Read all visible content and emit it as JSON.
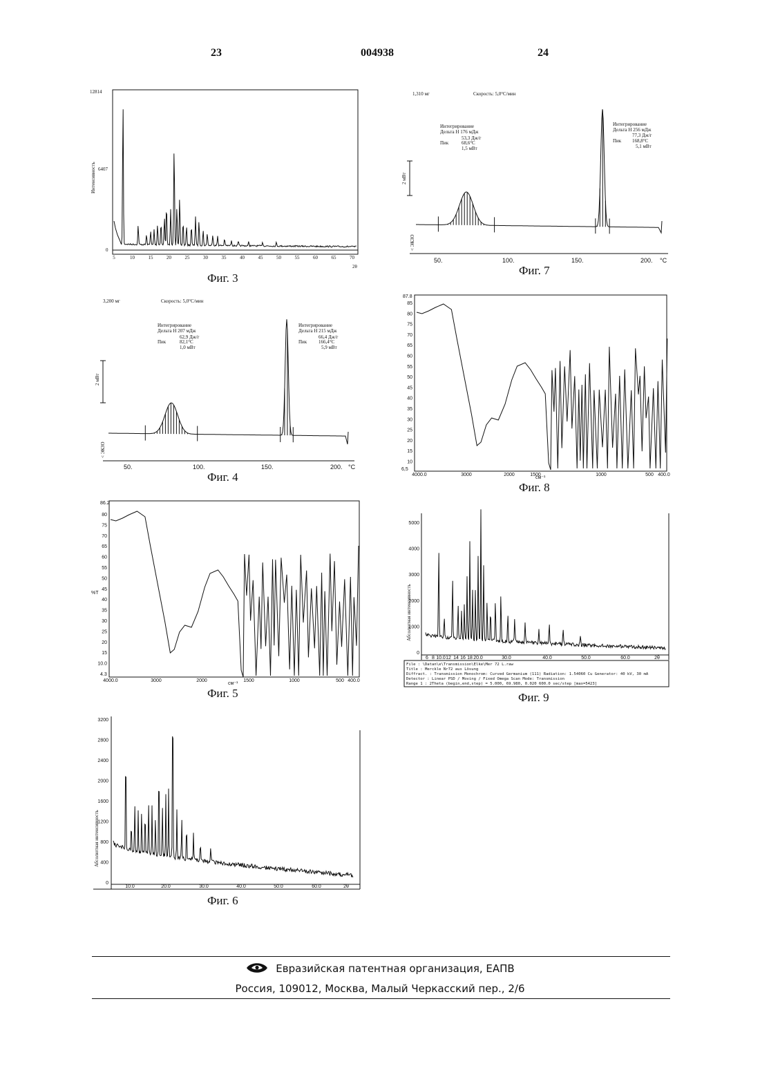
{
  "header": {
    "page_left": "23",
    "patent_number": "004938",
    "page_right": "24"
  },
  "fig3": {
    "caption": "Фиг. 3",
    "ylabel": "Интенсивность",
    "yticks": [
      "12814",
      "6407",
      "0"
    ],
    "xticks": [
      "5",
      "10",
      "15",
      "20",
      "25",
      "30",
      "35",
      "40",
      "45",
      "50",
      "55",
      "60",
      "65",
      "70"
    ],
    "xunit": "2θ"
  },
  "fig4": {
    "caption": "Фиг. 4",
    "mass": "3,200 мг",
    "rate": "Скорость: 5,0°С/мин",
    "left_block": [
      "Интегрирование",
      "Дельта Н 207 мДж",
      "62,9 Дж/г",
      "Пик",
      "82,1°С",
      "1,0 мВт"
    ],
    "right_block": [
      "Интегрирование",
      "Дельта Н 215 мДж",
      "66,4 Дж/г",
      "Пик",
      "166,4°С",
      "5,9 мВт"
    ],
    "scale_label": "2 мВт",
    "endo_label": "< ЭКЗО",
    "xticks": [
      "50.",
      "100.",
      "150.",
      "200."
    ],
    "xunit": "°С"
  },
  "fig5": {
    "caption": "Фиг. 5",
    "ytop": "86.2",
    "yticks": [
      "80",
      "75",
      "70",
      "65",
      "60",
      "55",
      "50",
      "45",
      "40",
      "35",
      "30",
      "25",
      "20",
      "15",
      "10.0"
    ],
    "ybottom": "4.3",
    "ylabel": "%Т",
    "xticks": [
      "4000.0",
      "3000",
      "2000",
      "1500",
      "1000",
      "500",
      "400.0"
    ],
    "xunit": "см⁻¹"
  },
  "fig6": {
    "caption": "Фиг. 6",
    "ylabel": "Абсолютная интенсивность",
    "yticks": [
      "3200",
      "2800",
      "2400",
      "2000",
      "1600",
      "1200",
      "800",
      "400",
      "0"
    ],
    "xticks": [
      "10.0",
      "20.0",
      "30.0",
      "40.0",
      "50.0",
      "60.0",
      "2θ"
    ]
  },
  "fig7": {
    "caption": "Фиг. 7",
    "mass": "1,310 мг",
    "rate": "Скорость: 5,0°С/мин",
    "left_block": [
      "Интегрирование",
      "Дельта Н 176 мДж",
      "53,3 Дж/г",
      "Пик",
      "68,6°С",
      "1,5 мВт"
    ],
    "right_block": [
      "Интегрирование",
      "Дельта Н 256 мДж",
      "77,3 Дж/г",
      "Пик",
      "168,8°С",
      "5,1 мВт"
    ],
    "scale_label": "2 мВт",
    "endo_label": "< ЭКЗО",
    "xticks": [
      "50.",
      "100.",
      "150.",
      "200."
    ],
    "xunit": "°С"
  },
  "fig8": {
    "caption": "Фиг. 8",
    "ytop": "87.8",
    "yticks": [
      "85",
      "80",
      "75",
      "70",
      "65",
      "60",
      "55",
      "50",
      "45",
      "40",
      "35",
      "30",
      "25",
      "20",
      "15",
      "10"
    ],
    "ybottom": "6,5",
    "xticks": [
      "4000.0",
      "3000",
      "2000",
      "1500",
      "1000",
      "500",
      "400.0"
    ],
    "xunit": "см⁻¹"
  },
  "fig9": {
    "caption": "Фиг. 9",
    "ylabel": "Абсолютная интенсивность",
    "yticks": [
      "5000",
      "4000",
      "3000",
      "2000",
      "1000",
      "0"
    ],
    "xticks": [
      "6",
      "8",
      "10.0",
      "12",
      "14",
      "16",
      "18",
      "20.0",
      "30.0",
      "40.0",
      "50.0",
      "60.0",
      "2θ"
    ],
    "info": [
      "File      : \\Datan\\e\\Transmission\\Elke\\Mer  72 L.raw",
      "Title     : Merckle Nr72 aus Lösung",
      "Diffract. : Transmission     Monochrom: Curved Germanium (111)     Radiation: 1.54060 Cu   Generator: 40 kV, 30 mA",
      "Detector  : Linear PSD / Moving / Fixed Omega                       Scan Mode: Transmission",
      "Range 1   : 2Theta (begin,end,step) = 5.000, 69.980, 0.020  600.0 sec/step   [max=5423]"
    ]
  },
  "footer": {
    "organization": "Евразийская патентная организация, ЕАПВ",
    "address": "Россия, 109012, Москва, Малый Черкасский пер., 2/6"
  }
}
